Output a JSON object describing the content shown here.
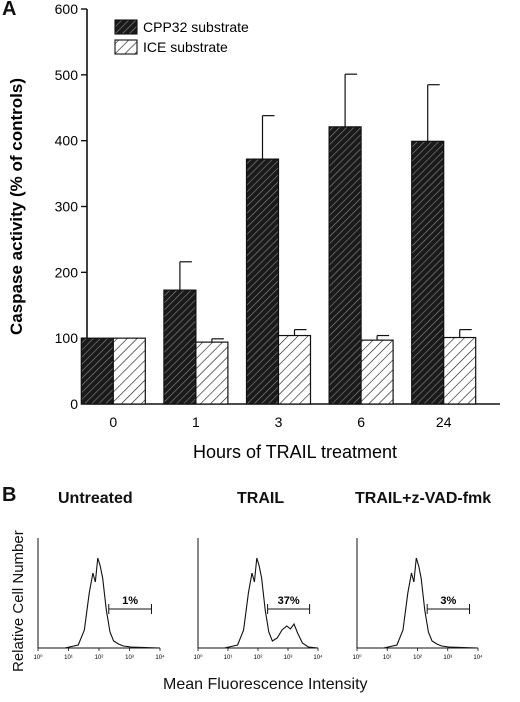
{
  "panel_a_letter": "A",
  "panel_b_letter": "B",
  "chart_data": [
    {
      "type": "bar",
      "ylabel": "Caspase activity (% of controls)",
      "xlabel": "Hours of TRAIL treatment",
      "categories": [
        "0",
        "1",
        "3",
        "6",
        "24"
      ],
      "ylim": [
        0,
        600
      ],
      "yticks": [
        "0",
        "100",
        "200",
        "300",
        "400",
        "500",
        "600"
      ],
      "series": [
        {
          "name": "CPP32 substrate",
          "values": [
            100,
            173,
            372,
            421,
            399
          ],
          "errors": [
            0,
            43,
            66,
            80,
            86
          ],
          "color": "#1a1a1a",
          "pattern": "dense dark diagonal hatch"
        },
        {
          "name": "ICE substrate",
          "values": [
            100,
            94,
            104,
            97,
            101
          ],
          "errors": [
            0,
            5,
            9,
            7,
            12
          ],
          "color": "#ffffff",
          "pattern": "sparse diagonal hatch"
        }
      ],
      "legend_position": "top-left"
    },
    {
      "type": "line",
      "ylabel": "Relative Cell Number",
      "xlabel": "Mean Fluorescence Intensity",
      "x_scale": "log",
      "xticks": [
        "10⁰",
        "10¹",
        "10²",
        "10³",
        "10⁴"
      ],
      "panels": [
        {
          "title": "Untreated",
          "gate_label": "1%",
          "second_peak": false
        },
        {
          "title": "TRAIL",
          "gate_label": "37%",
          "second_peak": true
        },
        {
          "title": "TRAIL+z-VAD-fmk",
          "gate_label": "3%",
          "second_peak": false
        }
      ]
    }
  ]
}
